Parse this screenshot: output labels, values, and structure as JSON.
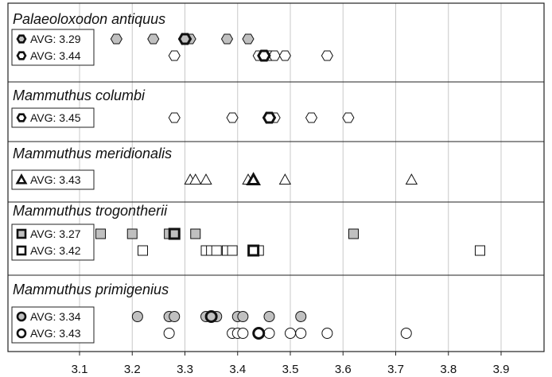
{
  "chart_data": {
    "type": "scatter",
    "x_range": [
      3.05,
      3.98
    ],
    "x_ticks": [
      3.1,
      3.2,
      3.3,
      3.4,
      3.5,
      3.6,
      3.7,
      3.8,
      3.9
    ],
    "x_tick_labels": [
      "3.1",
      "3.2",
      "3.3",
      "3.4",
      "3.5",
      "3.6",
      "3.7",
      "3.8",
      "3.9"
    ],
    "grid": "vertical",
    "groups": [
      {
        "title": "Palaeoloxodon antiquus",
        "rows": [
          {
            "marker": "hexagon",
            "fill": "#c0c0c0",
            "avg_label": "AVG: 3.29",
            "avg": 3.3,
            "values": [
              3.17,
              3.24,
              3.31,
              3.38,
              3.42
            ]
          },
          {
            "marker": "hexagon",
            "fill": "#ffffff",
            "avg_label": "AVG: 3.44",
            "avg": 3.45,
            "values": [
              3.28,
              3.44,
              3.46,
              3.47,
              3.49,
              3.57
            ]
          }
        ]
      },
      {
        "title": "Mammuthus columbi",
        "rows": [
          {
            "marker": "hexagon",
            "fill": "#ffffff",
            "avg_label": "AVG: 3.45",
            "avg": 3.46,
            "values": [
              3.28,
              3.39,
              3.47,
              3.54,
              3.61
            ]
          }
        ]
      },
      {
        "title": "Mammuthus meridionalis",
        "rows": [
          {
            "marker": "triangle",
            "fill": "#ffffff",
            "avg_label": "AVG: 3.43",
            "avg": 3.43,
            "values": [
              3.31,
              3.32,
              3.34,
              3.42,
              3.49,
              3.73
            ]
          }
        ]
      },
      {
        "title": "Mammuthus trogontherii",
        "rows": [
          {
            "marker": "square",
            "fill": "#c0c0c0",
            "avg_label": "AVG: 3.27",
            "avg": 3.28,
            "values": [
              3.14,
              3.2,
              3.27,
              3.32,
              3.62
            ]
          },
          {
            "marker": "square",
            "fill": "#ffffff",
            "avg_label": "AVG: 3.42",
            "avg": 3.43,
            "values": [
              3.22,
              3.34,
              3.35,
              3.36,
              3.38,
              3.39,
              3.44,
              3.86
            ]
          }
        ]
      },
      {
        "title": "Mammuthus primigenius",
        "rows": [
          {
            "marker": "circle",
            "fill": "#c0c0c0",
            "avg_label": "AVG: 3.34",
            "avg": 3.35,
            "values": [
              3.21,
              3.27,
              3.28,
              3.34,
              3.36,
              3.4,
              3.41,
              3.46,
              3.52
            ]
          },
          {
            "marker": "circle",
            "fill": "#ffffff",
            "avg_label": "AVG: 3.43",
            "avg": 3.44,
            "values": [
              3.27,
              3.39,
              3.4,
              3.41,
              3.46,
              3.5,
              3.52,
              3.57,
              3.72
            ]
          }
        ]
      }
    ]
  }
}
